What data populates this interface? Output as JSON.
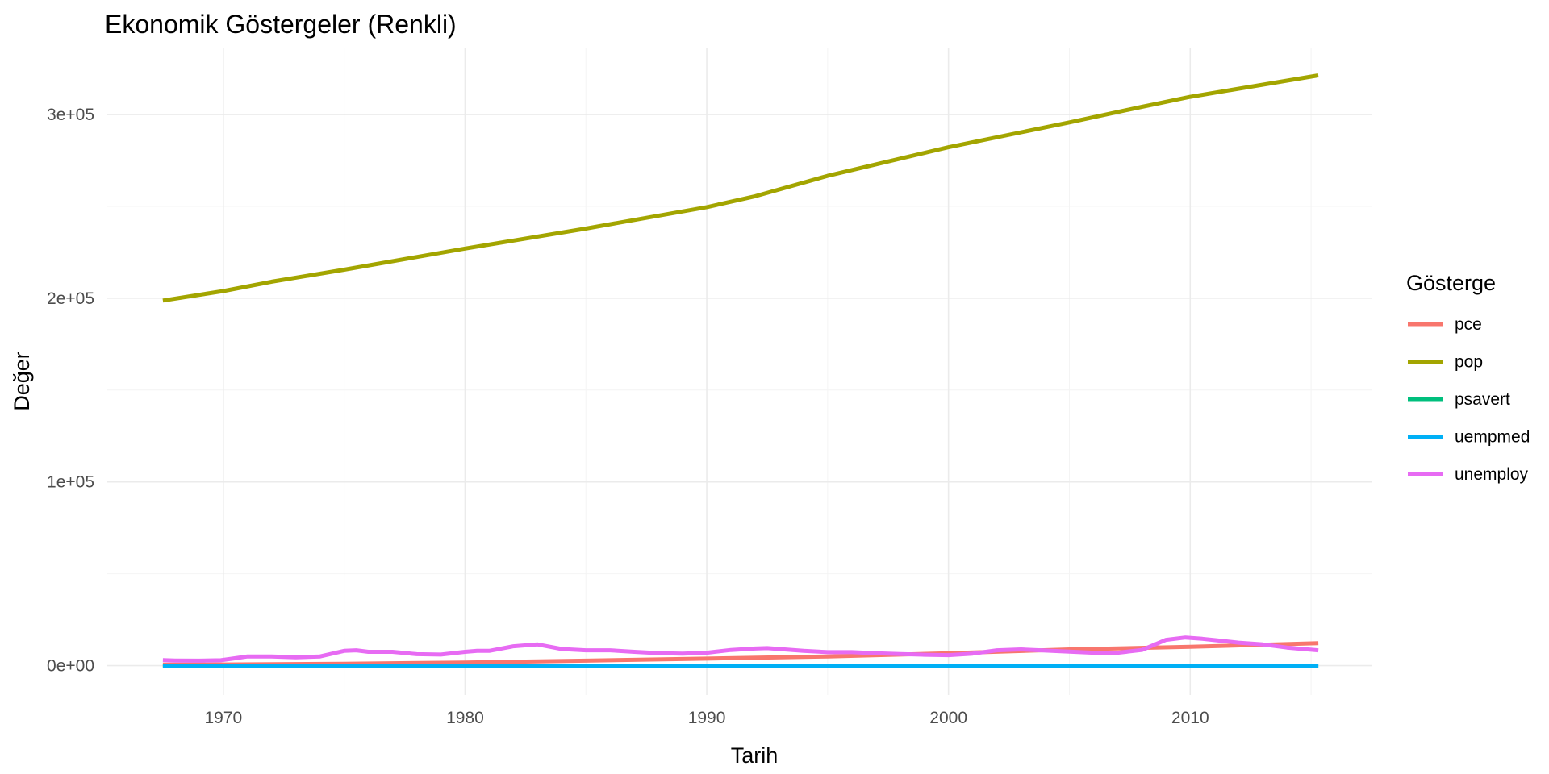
{
  "chart_data": {
    "type": "line",
    "title": "Ekonomik Göstergeler (Renkli)",
    "xlabel": "Tarih",
    "ylabel": "Değer",
    "xlim": [
      1965.2,
      2017.5
    ],
    "ylim": [
      -16000,
      336000
    ],
    "x_ticks": [
      1970,
      1980,
      1990,
      2000,
      2010
    ],
    "x_tick_labels": [
      "1970",
      "1980",
      "1990",
      "2000",
      "2010"
    ],
    "x_minor_ticks": [
      1975,
      1985,
      1995,
      2005,
      2015
    ],
    "y_ticks": [
      0,
      100000,
      200000,
      300000
    ],
    "y_tick_labels": [
      "0e+00",
      "1e+05",
      "2e+05",
      "3e+05"
    ],
    "y_minor_ticks": [
      50000,
      150000,
      250000
    ],
    "grid": true,
    "legend": {
      "title": "Gösterge",
      "position": "right"
    },
    "series": [
      {
        "name": "pce",
        "color": "#F8766D",
        "x": [
          1967.5,
          1970,
          1975,
          1980,
          1985,
          1990,
          1995,
          2000,
          2005,
          2010,
          2015.3
        ],
        "y": [
          507,
          640,
          1000,
          1700,
          2700,
          3800,
          5000,
          6700,
          8800,
          10200,
          12200
        ]
      },
      {
        "name": "pop",
        "color": "#A3A500",
        "x": [
          1967.5,
          1970,
          1972,
          1975,
          1980,
          1985,
          1990,
          1992,
          1995,
          2000,
          2005,
          2008,
          2010,
          2015.3
        ],
        "y": [
          198700,
          203900,
          209000,
          215500,
          227000,
          237900,
          249600,
          255500,
          266600,
          282200,
          295700,
          304200,
          309600,
          321300
        ]
      },
      {
        "name": "psavert",
        "color": "#00BF7D",
        "x": [
          1967.5,
          1975,
          1985,
          1995,
          2005,
          2015.3
        ],
        "y": [
          12.6,
          12.0,
          10.0,
          6.0,
          3.0,
          7.6
        ]
      },
      {
        "name": "uempmed",
        "color": "#00B0F6",
        "x": [
          1967.5,
          1975,
          1985,
          1995,
          2005,
          2009.5,
          2010.5,
          2012,
          2015.3
        ],
        "y": [
          4.5,
          8.0,
          7.0,
          8.0,
          9.0,
          20.0,
          25.0,
          20.0,
          12.0
        ]
      },
      {
        "name": "unemploy",
        "color": "#E76BF3",
        "x": [
          1967.5,
          1968,
          1969,
          1969.9,
          1970.5,
          1971,
          1972,
          1973,
          1974,
          1975,
          1975.5,
          1976,
          1977,
          1978,
          1979,
          1980,
          1980.5,
          1981,
          1982,
          1983,
          1984,
          1985,
          1986,
          1987,
          1988,
          1989,
          1990,
          1991,
          1992,
          1992.5,
          1993,
          1994,
          1995,
          1996,
          1997,
          1998,
          1999,
          2000,
          2001,
          2002,
          2003,
          2004,
          2005,
          2006,
          2007,
          2008,
          2009,
          2009.8,
          2010.5,
          2011,
          2012,
          2013,
          2014,
          2015.3
        ],
        "y": [
          2944,
          2800,
          2700,
          2900,
          4000,
          5000,
          5000,
          4500,
          5000,
          8000,
          8300,
          7500,
          7500,
          6200,
          6000,
          7500,
          8000,
          8000,
          10500,
          11500,
          9000,
          8300,
          8300,
          7500,
          6800,
          6500,
          7000,
          8500,
          9300,
          9500,
          9000,
          8000,
          7300,
          7300,
          6700,
          6300,
          5900,
          5700,
          6500,
          8300,
          8800,
          8200,
          7600,
          7000,
          7000,
          8500,
          14000,
          15300,
          14600,
          13900,
          12500,
          11500,
          9800,
          8300
        ]
      }
    ]
  }
}
